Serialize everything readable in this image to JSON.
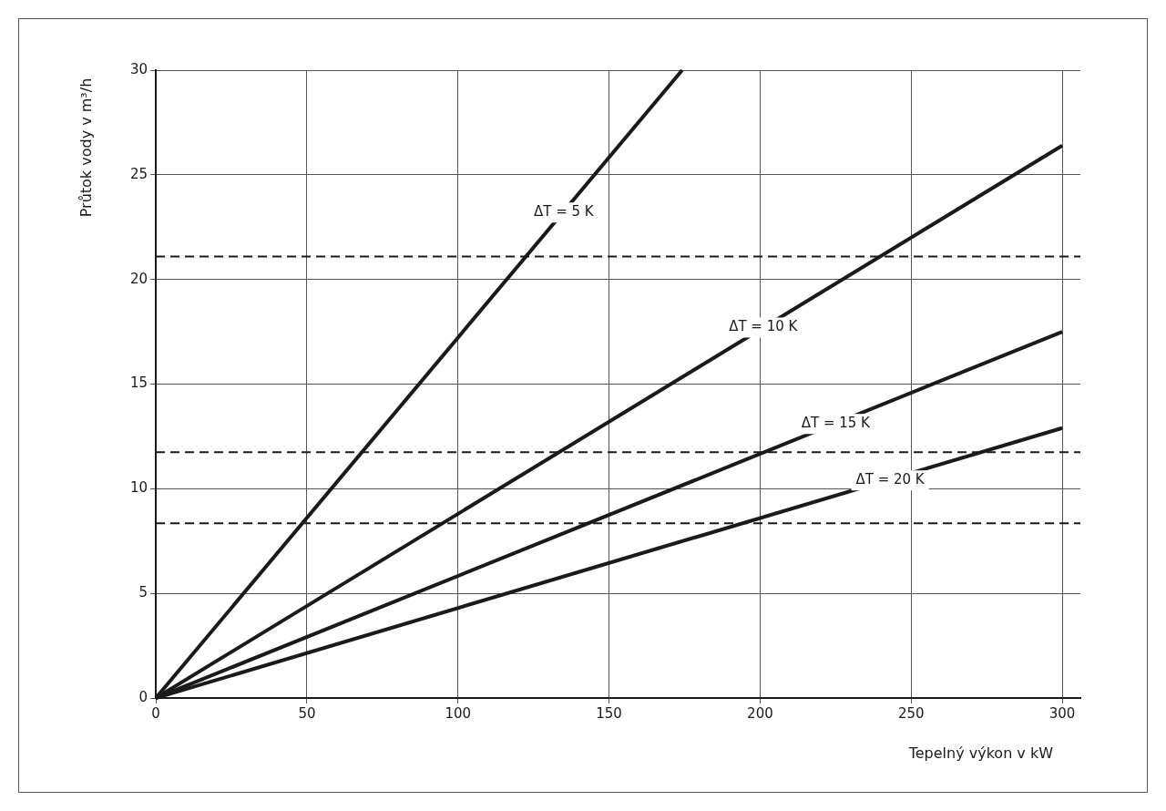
{
  "chart_data": {
    "type": "line",
    "xlabel": "Tepelný výkon v kW",
    "ylabel": "Průtok vody v m³/h",
    "series": [
      {
        "color": "#1a1a1a",
        "x": [
          0,
          174.2
        ],
        "values": [
          0,
          30
        ]
      },
      {
        "color": "#1a1a1a",
        "x": [
          0,
          300
        ],
        "values": [
          0,
          26.4
        ]
      },
      {
        "color": "#1a1a1a",
        "x": [
          0,
          300
        ],
        "values": [
          0,
          17.5
        ]
      },
      {
        "color": "#1a1a1a",
        "x": [
          0,
          300
        ],
        "values": [
          0,
          12.9
        ]
      }
    ],
    "annotations": [
      {
        "text": "ΔT = 5 K",
        "x": 135,
        "y": 23.2
      },
      {
        "text": "ΔT = 10 K",
        "x": 201,
        "y": 17.7
      },
      {
        "text": "ΔT = 15 K",
        "x": 225,
        "y": 13.1
      },
      {
        "text": "ΔT = 20 K",
        "x": 243,
        "y": 10.4
      }
    ],
    "ref_lines": [
      {
        "axis": "y",
        "value": 21.1,
        "color": "#1a1a1a",
        "line_style": "dashed"
      },
      {
        "axis": "y",
        "value": 11.75,
        "color": "#1a1a1a",
        "line_style": "dashed"
      },
      {
        "axis": "y",
        "value": 8.35,
        "color": "#1a1a1a",
        "line_style": "dashed"
      }
    ],
    "xlim": [
      0,
      306
    ],
    "xticks": [
      0,
      50,
      100,
      150,
      200,
      250,
      300
    ],
    "ylim": [
      0,
      30
    ],
    "yticks": [
      0,
      5,
      10,
      15,
      20,
      25,
      30
    ],
    "grid": true,
    "legend": false,
    "marker": "none",
    "line_style": "solid"
  }
}
